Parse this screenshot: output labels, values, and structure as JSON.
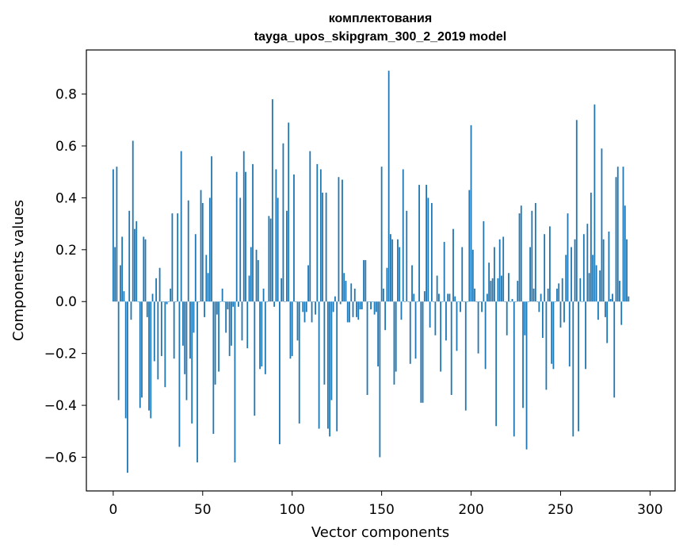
{
  "chart_data": {
    "type": "bar",
    "title_lines": [
      "комплектования",
      "tayga_upos_skipgram_300_2_2019 model"
    ],
    "xlabel": "Vector components",
    "ylabel": "Components values",
    "xlim": [
      -15,
      314
    ],
    "ylim": [
      -0.73,
      0.97
    ],
    "xticks": [
      0,
      50,
      100,
      150,
      200,
      250,
      300
    ],
    "yticks": [
      -0.6,
      -0.4,
      -0.2,
      0.0,
      0.2,
      0.4,
      0.6,
      0.8
    ],
    "ytick_labels": [
      "−0.6",
      "−0.4",
      "−0.2",
      "0.0",
      "0.2",
      "0.4",
      "0.6",
      "0.8"
    ],
    "bar_color": "#1f77b4",
    "grid": false,
    "values": [
      0.51,
      0.21,
      0.52,
      -0.38,
      0.14,
      0.25,
      0.04,
      -0.45,
      -0.66,
      0.35,
      -0.07,
      0.62,
      0.28,
      0.31,
      0.0,
      -0.41,
      -0.37,
      0.25,
      0.24,
      -0.06,
      -0.42,
      -0.45,
      0.03,
      -0.23,
      0.09,
      -0.3,
      0.13,
      -0.21,
      0.0,
      -0.33,
      -0.01,
      0.0,
      0.05,
      0.34,
      -0.22,
      0.0,
      0.34,
      -0.56,
      0.58,
      -0.17,
      -0.28,
      -0.38,
      0.39,
      -0.22,
      -0.47,
      -0.12,
      0.26,
      -0.62,
      0.0,
      0.43,
      0.38,
      -0.06,
      0.18,
      0.11,
      0.4,
      0.56,
      -0.51,
      -0.32,
      -0.05,
      -0.27,
      0.0,
      0.05,
      0.0,
      -0.12,
      -0.03,
      -0.21,
      -0.17,
      -0.02,
      -0.62,
      0.5,
      -0.02,
      0.4,
      -0.15,
      0.58,
      0.5,
      -0.18,
      0.1,
      0.21,
      0.53,
      -0.44,
      0.2,
      0.16,
      -0.26,
      -0.25,
      0.05,
      -0.28,
      0.0,
      0.33,
      0.32,
      0.78,
      -0.02,
      0.51,
      0.4,
      -0.55,
      0.09,
      0.61,
      0.0,
      0.35,
      0.69,
      -0.22,
      -0.21,
      0.49,
      0.0,
      -0.15,
      -0.47,
      0.0,
      -0.04,
      -0.08,
      -0.04,
      0.14,
      0.58,
      -0.08,
      0.0,
      -0.05,
      0.53,
      -0.49,
      0.51,
      0.42,
      -0.32,
      0.42,
      -0.49,
      -0.52,
      -0.38,
      -0.04,
      0.02,
      -0.5,
      0.48,
      -0.01,
      0.47,
      0.11,
      0.08,
      -0.08,
      -0.08,
      0.07,
      -0.06,
      0.05,
      -0.06,
      -0.07,
      -0.03,
      -0.03,
      0.16,
      0.16,
      -0.36,
      0.0,
      -0.03,
      0.0,
      -0.05,
      -0.04,
      -0.25,
      -0.6,
      0.52,
      0.05,
      -0.11,
      0.13,
      0.89,
      0.26,
      0.24,
      -0.32,
      -0.27,
      0.24,
      0.21,
      -0.07,
      0.51,
      0.0,
      0.35,
      0.0,
      -0.24,
      0.14,
      0.03,
      -0.22,
      0.0,
      0.45,
      -0.39,
      -0.39,
      0.04,
      0.45,
      0.4,
      -0.1,
      0.38,
      0.0,
      -0.13,
      0.1,
      0.03,
      -0.27,
      0.0,
      0.23,
      -0.15,
      0.03,
      0.03,
      -0.36,
      0.28,
      0.02,
      -0.19,
      0.0,
      -0.04,
      0.21,
      0.0,
      -0.42,
      0.0,
      0.43,
      0.68,
      0.2,
      0.05,
      0.0,
      -0.2,
      0.0,
      -0.04,
      0.31,
      -0.26,
      0.03,
      0.15,
      0.08,
      0.09,
      0.21,
      -0.48,
      0.09,
      0.24,
      0.1,
      0.25,
      0.0,
      -0.13,
      0.11,
      0.0,
      0.01,
      -0.52,
      0.0,
      0.08,
      0.34,
      0.37,
      -0.41,
      -0.13,
      -0.57,
      0.0,
      0.21,
      0.35,
      0.05,
      0.38,
      0.0,
      -0.04,
      0.03,
      -0.14,
      0.26,
      -0.34,
      0.05,
      0.29,
      -0.24,
      -0.26,
      0.0,
      0.05,
      0.07,
      -0.1,
      0.09,
      -0.08,
      0.18,
      0.34,
      -0.25,
      0.21,
      -0.52,
      0.24,
      0.7,
      -0.5,
      0.09,
      0.0,
      0.26,
      -0.26,
      0.3,
      0.11,
      0.42,
      0.18,
      0.76,
      0.14,
      -0.07,
      0.12,
      0.59,
      0.24,
      -0.06,
      -0.16,
      0.27,
      0.01,
      0.03,
      -0.37,
      0.48,
      0.52,
      0.08,
      -0.09,
      0.52,
      0.37,
      0.24,
      0.02
    ]
  }
}
